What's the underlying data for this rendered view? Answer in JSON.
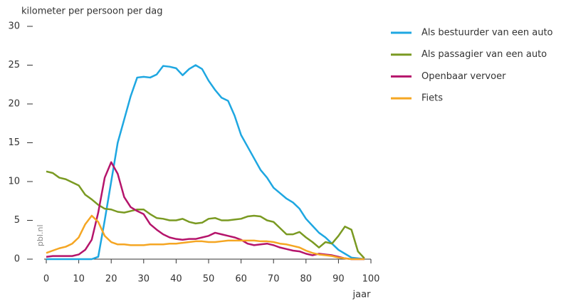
{
  "chart_data": {
    "type": "line",
    "y_label": "kilometer per persoon per dag",
    "x_label": "jaar",
    "source": "pbl.nl",
    "xlim": [
      0,
      100
    ],
    "xticks": [
      0,
      10,
      20,
      30,
      40,
      50,
      60,
      70,
      80,
      90,
      100
    ],
    "ylim": [
      0,
      30
    ],
    "yticks": [
      0,
      5,
      10,
      15,
      20,
      25,
      30
    ],
    "legend": "right",
    "x": [
      0,
      2,
      4,
      6,
      8,
      10,
      12,
      14,
      16,
      18,
      20,
      22,
      24,
      26,
      28,
      30,
      32,
      34,
      36,
      38,
      40,
      42,
      44,
      46,
      48,
      50,
      52,
      54,
      56,
      58,
      60,
      62,
      64,
      66,
      68,
      70,
      72,
      74,
      76,
      78,
      80,
      82,
      84,
      86,
      88,
      90,
      92,
      94,
      96,
      98
    ],
    "series": [
      {
        "name": "Als bestuurder van een auto",
        "color": "#1ea7e1",
        "values": [
          0,
          0,
          0,
          0,
          0,
          0,
          0,
          0,
          0.3,
          5,
          10,
          15,
          18,
          21,
          23.4,
          23.5,
          23.4,
          23.8,
          24.9,
          24.8,
          24.6,
          23.7,
          24.5,
          25,
          24.5,
          23,
          21.8,
          20.8,
          20.4,
          18.5,
          16,
          14.5,
          13,
          11.5,
          10.5,
          9.2,
          8.5,
          7.8,
          7.3,
          6.5,
          5.2,
          4.3,
          3.4,
          2.8,
          2,
          1.2,
          0.7,
          0.2,
          0.1,
          0
        ]
      },
      {
        "name": "Als passagier van een auto",
        "color": "#7a9a22",
        "values": [
          11.3,
          11.1,
          10.5,
          10.3,
          9.9,
          9.5,
          8.3,
          7.7,
          7,
          6.5,
          6.4,
          6.1,
          6,
          6.2,
          6.4,
          6.4,
          5.8,
          5.3,
          5.2,
          5,
          5,
          5.2,
          4.8,
          4.6,
          4.7,
          5.2,
          5.3,
          5,
          5,
          5.1,
          5.2,
          5.5,
          5.6,
          5.5,
          5,
          4.8,
          4,
          3.2,
          3.2,
          3.5,
          2.8,
          2.2,
          1.5,
          2.2,
          2,
          3,
          4.2,
          3.8,
          1,
          0.1
        ]
      },
      {
        "name": "Openbaar vervoer",
        "color": "#b5146b",
        "values": [
          0.3,
          0.4,
          0.4,
          0.4,
          0.4,
          0.6,
          1.2,
          2.5,
          6,
          10.5,
          12.5,
          11,
          8,
          6.7,
          6.2,
          5.8,
          4.5,
          3.8,
          3.2,
          2.8,
          2.6,
          2.5,
          2.6,
          2.6,
          2.8,
          3,
          3.4,
          3.2,
          3,
          2.8,
          2.5,
          2,
          1.8,
          1.9,
          2,
          1.8,
          1.5,
          1.3,
          1.1,
          1,
          0.7,
          0.5,
          0.7,
          0.6,
          0.5,
          0.3,
          0.1,
          0,
          0,
          0
        ]
      },
      {
        "name": "Fiets",
        "color": "#f5a623",
        "values": [
          0.8,
          1.1,
          1.4,
          1.6,
          2,
          2.8,
          4.5,
          5.6,
          4.8,
          3,
          2.2,
          1.9,
          1.9,
          1.8,
          1.8,
          1.8,
          1.9,
          1.9,
          1.9,
          2,
          2,
          2.1,
          2.2,
          2.3,
          2.3,
          2.2,
          2.2,
          2.3,
          2.4,
          2.4,
          2.4,
          2.4,
          2.4,
          2.3,
          2.3,
          2.2,
          2,
          1.9,
          1.7,
          1.5,
          1.1,
          0.8,
          0.6,
          0.5,
          0.4,
          0.2,
          0.1,
          0,
          0,
          0
        ]
      }
    ]
  }
}
